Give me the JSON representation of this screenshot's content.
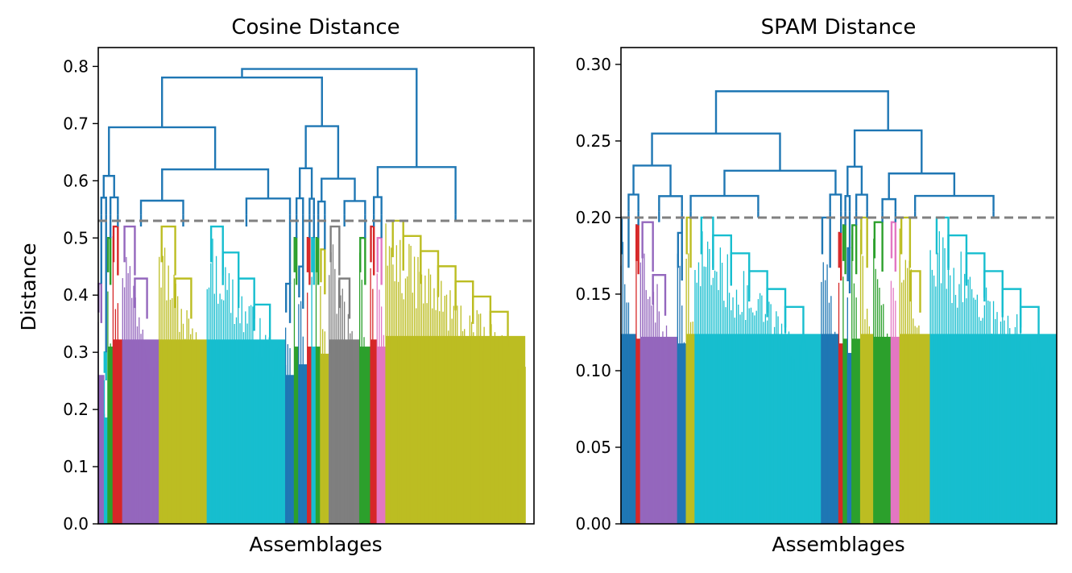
{
  "chart_data": [
    {
      "type": "dendrogram",
      "title": "Cosine Distance",
      "xlabel": "Assemblages",
      "ylabel": "Distance",
      "ylim": [
        0,
        0.833
      ],
      "yticks": [
        0.0,
        0.1,
        0.2,
        0.3,
        0.4,
        0.5,
        0.6,
        0.7,
        0.8
      ],
      "tick_labels": [
        "0.0",
        "0.1",
        "0.2",
        "0.3",
        "0.4",
        "0.5",
        "0.6",
        "0.7",
        "0.8"
      ],
      "cut_threshold": 0.53,
      "grid": false,
      "colors": {
        "above_threshold": "#1f77b4",
        "clusters": [
          "#9467bd",
          "#d62728",
          "#2ca02c",
          "#bcbd22",
          "#17becf",
          "#7f7f7f",
          "#e377c2"
        ]
      },
      "cluster_spans": [
        {
          "color": "#9467bd",
          "x0": 0.0,
          "x1": 0.014,
          "height": 0.42
        },
        {
          "color": "#17becf",
          "x0": 0.014,
          "x1": 0.022,
          "height": 0.3
        },
        {
          "color": "#2ca02c",
          "x0": 0.022,
          "x1": 0.034,
          "height": 0.5
        },
        {
          "color": "#d62728",
          "x0": 0.034,
          "x1": 0.056,
          "height": 0.52
        },
        {
          "color": "#9467bd",
          "x0": 0.056,
          "x1": 0.14,
          "height": 0.52
        },
        {
          "color": "#bcbd22",
          "x0": 0.14,
          "x1": 0.25,
          "height": 0.52
        },
        {
          "color": "#17becf",
          "x0": 0.25,
          "x1": 0.43,
          "height": 0.52
        },
        {
          "color": "#1f77b4",
          "x0": 0.43,
          "x1": 0.45,
          "height": 0.42
        },
        {
          "color": "#2ca02c",
          "x0": 0.45,
          "x1": 0.46,
          "height": 0.5
        },
        {
          "color": "#1f77b4",
          "x0": 0.46,
          "x1": 0.48,
          "height": 0.45
        },
        {
          "color": "#d62728",
          "x0": 0.48,
          "x1": 0.49,
          "height": 0.5
        },
        {
          "color": "#17becf",
          "x0": 0.49,
          "x1": 0.5,
          "height": 0.5
        },
        {
          "color": "#2ca02c",
          "x0": 0.5,
          "x1": 0.51,
          "height": 0.5
        },
        {
          "color": "#bcbd22",
          "x0": 0.51,
          "x1": 0.53,
          "height": 0.48
        },
        {
          "color": "#7f7f7f",
          "x0": 0.53,
          "x1": 0.6,
          "height": 0.52
        },
        {
          "color": "#2ca02c",
          "x0": 0.6,
          "x1": 0.625,
          "height": 0.5
        },
        {
          "color": "#d62728",
          "x0": 0.625,
          "x1": 0.64,
          "height": 0.52
        },
        {
          "color": "#e377c2",
          "x0": 0.64,
          "x1": 0.66,
          "height": 0.5
        },
        {
          "color": "#bcbd22",
          "x0": 0.66,
          "x1": 0.98,
          "height": 0.53
        }
      ]
    },
    {
      "type": "dendrogram",
      "title": "SPAM Distance",
      "xlabel": "Assemblages",
      "ylabel": "",
      "ylim": [
        0,
        0.311
      ],
      "yticks": [
        0.0,
        0.05,
        0.1,
        0.15,
        0.2,
        0.25,
        0.3
      ],
      "tick_labels": [
        "0.00",
        "0.05",
        "0.10",
        "0.15",
        "0.20",
        "0.25",
        "0.30"
      ],
      "cut_threshold": 0.2,
      "grid": false,
      "colors": {
        "above_threshold": "#1f77b4",
        "clusters": [
          "#9467bd",
          "#d62728",
          "#2ca02c",
          "#bcbd22",
          "#17becf",
          "#e377c2"
        ]
      },
      "cluster_spans": [
        {
          "color": "#1f77b4",
          "x0": 0.0,
          "x1": 0.035,
          "height": 0.2
        },
        {
          "color": "#d62728",
          "x0": 0.035,
          "x1": 0.045,
          "height": 0.195
        },
        {
          "color": "#9467bd",
          "x0": 0.045,
          "x1": 0.13,
          "height": 0.197
        },
        {
          "color": "#1f77b4",
          "x0": 0.13,
          "x1": 0.15,
          "height": 0.19
        },
        {
          "color": "#bcbd22",
          "x0": 0.15,
          "x1": 0.17,
          "height": 0.2
        },
        {
          "color": "#17becf",
          "x0": 0.17,
          "x1": 0.46,
          "height": 0.2
        },
        {
          "color": "#1f77b4",
          "x0": 0.46,
          "x1": 0.5,
          "height": 0.2
        },
        {
          "color": "#d62728",
          "x0": 0.5,
          "x1": 0.51,
          "height": 0.19
        },
        {
          "color": "#2ca02c",
          "x0": 0.51,
          "x1": 0.52,
          "height": 0.195
        },
        {
          "color": "#1f77b4",
          "x0": 0.52,
          "x1": 0.53,
          "height": 0.18
        },
        {
          "color": "#2ca02c",
          "x0": 0.53,
          "x1": 0.55,
          "height": 0.195
        },
        {
          "color": "#bcbd22",
          "x0": 0.55,
          "x1": 0.58,
          "height": 0.2
        },
        {
          "color": "#2ca02c",
          "x0": 0.58,
          "x1": 0.62,
          "height": 0.197
        },
        {
          "color": "#e377c2",
          "x0": 0.62,
          "x1": 0.64,
          "height": 0.197
        },
        {
          "color": "#bcbd22",
          "x0": 0.64,
          "x1": 0.71,
          "height": 0.2
        },
        {
          "color": "#17becf",
          "x0": 0.71,
          "x1": 1.0,
          "height": 0.2
        }
      ]
    }
  ]
}
